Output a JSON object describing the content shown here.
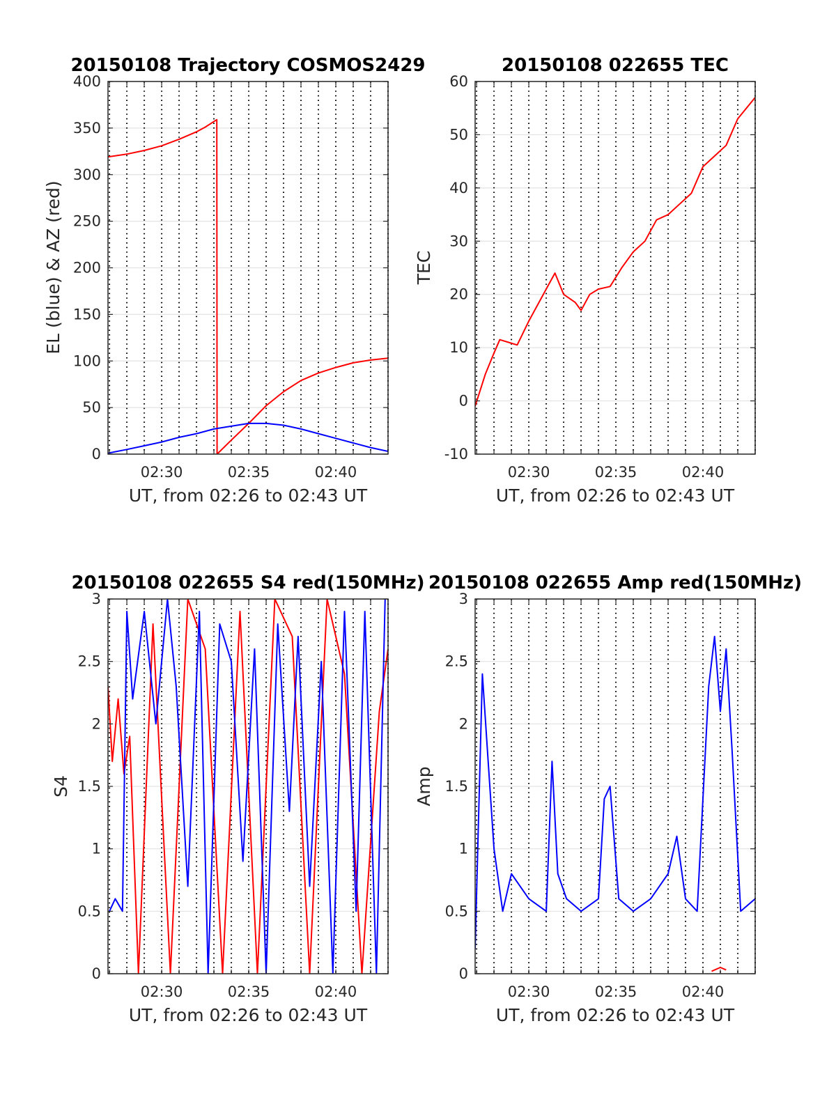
{
  "chart_data": [
    {
      "type": "line",
      "title": "20150108 Trajectory COSMOS2429",
      "xlabel": "UT, from 02:26 to 02:43 UT",
      "ylabel": "EL (blue) & AZ (red)",
      "x_minutes_range": [
        "02:26:55",
        "02:43:00"
      ],
      "xticks": [
        "02:30",
        "02:35",
        "02:40"
      ],
      "yticks": [
        "0",
        "50",
        "100",
        "150",
        "200",
        "250",
        "300",
        "350",
        "400"
      ],
      "ylim": [
        0,
        400
      ],
      "grid": true,
      "series": [
        {
          "color": "#ff0000",
          "x": [
            "02:26:55",
            "02:28:00",
            "02:29:00",
            "02:30:00",
            "02:31:00",
            "02:32:00",
            "02:32:30",
            "02:33:10",
            "02:33:11",
            "02:34:00",
            "02:35:00",
            "02:36:00",
            "02:37:00",
            "02:38:00",
            "02:39:00",
            "02:40:00",
            "02:41:00",
            "02:42:00",
            "02:43:00"
          ],
          "values": [
            319,
            322,
            326,
            331,
            338,
            346,
            351,
            359,
            0,
            15,
            33,
            52,
            67,
            79,
            87,
            93,
            98,
            101,
            103
          ]
        },
        {
          "color": "#0000ff",
          "x": [
            "02:26:55",
            "02:28:00",
            "02:29:00",
            "02:30:00",
            "02:31:00",
            "02:32:00",
            "02:33:00",
            "02:34:00",
            "02:35:00",
            "02:36:00",
            "02:37:00",
            "02:38:00",
            "02:39:00",
            "02:40:00",
            "02:41:00",
            "02:42:00",
            "02:43:00"
          ],
          "values": [
            1,
            5,
            9,
            13,
            18,
            22,
            27,
            30,
            33,
            33,
            31,
            27,
            22,
            17,
            12,
            7,
            3
          ]
        }
      ]
    },
    {
      "type": "line",
      "title": "20150108 022655 TEC",
      "xlabel": "UT, from 02:26 to 02:43 UT",
      "ylabel": "TEC",
      "xticks": [
        "02:30",
        "02:35",
        "02:40"
      ],
      "yticks": [
        "-10",
        "0",
        "10",
        "20",
        "30",
        "40",
        "50",
        "60"
      ],
      "ylim": [
        -10,
        60
      ],
      "grid": true,
      "series": [
        {
          "color": "#ff0000",
          "x": [
            "02:26:55",
            "02:27:30",
            "02:28:00",
            "02:28:20",
            "02:28:50",
            "02:29:20",
            "02:30:00",
            "02:30:40",
            "02:31:10",
            "02:31:30",
            "02:32:00",
            "02:32:40",
            "02:33:00",
            "02:33:30",
            "02:34:00",
            "02:34:40",
            "02:35:20",
            "02:36:00",
            "02:36:40",
            "02:37:20",
            "02:38:00",
            "02:38:40",
            "02:39:20",
            "02:40:00",
            "02:40:40",
            "02:41:20",
            "02:42:00",
            "02:43:00"
          ],
          "values": [
            -1,
            5,
            9,
            11.5,
            11,
            10.5,
            15,
            19,
            22,
            24,
            20,
            18.5,
            17,
            20,
            21,
            21.5,
            25,
            28,
            30,
            34,
            35,
            37,
            39,
            44,
            46,
            48,
            53,
            57
          ]
        }
      ]
    },
    {
      "type": "line",
      "title": "20150108 022655 S4 red(150MHz)",
      "xlabel": "UT, from 02:26 to 02:43 UT",
      "ylabel": "S4",
      "xticks": [
        "02:30",
        "02:35",
        "02:40"
      ],
      "yticks": [
        "0",
        "0.5",
        "1",
        "1.5",
        "2",
        "2.5",
        "3"
      ],
      "ylim": [
        0,
        3
      ],
      "grid": true,
      "series": [
        {
          "color": "#ff0000",
          "x": [
            "02:26:55",
            "02:27:10",
            "02:27:30",
            "02:27:50",
            "02:28:10",
            "02:28:40",
            "02:29:30",
            "02:30:30",
            "02:31:30",
            "02:32:30",
            "02:33:30",
            "02:34:30",
            "02:35:30",
            "02:36:30",
            "02:37:30",
            "02:38:30",
            "02:39:30",
            "02:40:30",
            "02:41:30",
            "02:42:30",
            "02:43:00"
          ],
          "values": [
            2.3,
            1.7,
            2.2,
            1.6,
            1.9,
            0,
            2.8,
            0,
            3,
            2.6,
            0,
            2.9,
            0,
            3,
            2.7,
            0,
            3,
            2.4,
            0,
            2.1,
            2.6
          ]
        },
        {
          "color": "#0000ff",
          "x": [
            "02:27:00",
            "02:27:20",
            "02:27:45",
            "02:28:00",
            "02:28:20",
            "02:29:00",
            "02:29:40",
            "02:30:20",
            "02:30:50",
            "02:31:30",
            "02:32:10",
            "02:32:40",
            "02:33:20",
            "02:34:00",
            "02:34:40",
            "02:35:20",
            "02:36:00",
            "02:36:40",
            "02:37:20",
            "02:37:50",
            "02:38:30",
            "02:39:10",
            "02:39:50",
            "02:40:30",
            "02:41:10",
            "02:41:40",
            "02:42:20",
            "02:42:50"
          ],
          "values": [
            0.5,
            0.6,
            0.5,
            2.9,
            2.2,
            2.9,
            2,
            3,
            2.3,
            0.7,
            2.9,
            0,
            2.8,
            2.5,
            0.9,
            2.6,
            0,
            2.8,
            1.3,
            2.7,
            0.7,
            2.5,
            0,
            2.9,
            0.5,
            2.9,
            0,
            3
          ]
        }
      ]
    },
    {
      "type": "line",
      "title": "20150108 022655 Amp red(150MHz)",
      "xlabel": "UT, from 02:26 to 02:43 UT",
      "ylabel": "Amp",
      "xticks": [
        "02:30",
        "02:35",
        "02:40"
      ],
      "yticks": [
        "0",
        "0.5",
        "1",
        "1.5",
        "2",
        "2.5",
        "3"
      ],
      "ylim": [
        0,
        3
      ],
      "grid": true,
      "series": [
        {
          "color": "#0000ff",
          "x": [
            "02:26:55",
            "02:27:20",
            "02:27:40",
            "02:28:00",
            "02:28:30",
            "02:29:00",
            "02:30:00",
            "02:31:00",
            "02:31:20",
            "02:31:40",
            "02:32:10",
            "02:33:00",
            "02:34:00",
            "02:34:20",
            "02:34:40",
            "02:35:10",
            "02:36:00",
            "02:37:00",
            "02:38:00",
            "02:38:30",
            "02:39:00",
            "02:39:40",
            "02:40:20",
            "02:40:40",
            "02:41:00",
            "02:41:20",
            "02:41:40",
            "02:42:10",
            "02:43:00"
          ],
          "values": [
            0.2,
            2.4,
            1.7,
            1.0,
            0.5,
            0.8,
            0.6,
            0.5,
            1.7,
            0.8,
            0.6,
            0.5,
            0.6,
            1.4,
            1.5,
            0.6,
            0.5,
            0.6,
            0.8,
            1.1,
            0.6,
            0.5,
            2.3,
            2.7,
            2.1,
            2.6,
            1.8,
            0.5,
            0.6
          ]
        },
        {
          "color": "#ff0000",
          "x": [
            "02:40:30",
            "02:41:00",
            "02:41:20"
          ],
          "values": [
            0.02,
            0.05,
            0.03
          ]
        }
      ]
    }
  ]
}
